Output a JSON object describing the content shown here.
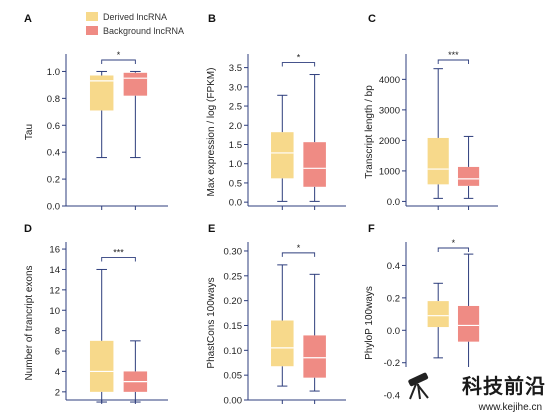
{
  "legend": {
    "items": [
      {
        "label": "Derived lncRNA",
        "color": "#f7d98b"
      },
      {
        "label": "Background lncRNA",
        "color": "#ef8b84"
      }
    ]
  },
  "colors": {
    "axis": "#2d3d7c",
    "derived": "#f7d98b",
    "background": "#ef8b84"
  },
  "chart_data": [
    {
      "panel": "A",
      "type": "box",
      "ylabel": "Tau",
      "ylim": [
        0,
        1.1
      ],
      "ticks": [
        0.0,
        0.2,
        0.4,
        0.6,
        0.8,
        1.0
      ],
      "tick_labels": [
        "0.0",
        "0.2",
        "0.4",
        "0.6",
        "0.8",
        "1.0"
      ],
      "significance": "*",
      "series": [
        {
          "name": "Derived lncRNA",
          "min": 0.36,
          "q1": 0.71,
          "median": 0.93,
          "q3": 0.97,
          "max": 1.0
        },
        {
          "name": "Background lncRNA",
          "min": 0.36,
          "q1": 0.82,
          "median": 0.95,
          "q3": 0.99,
          "max": 1.0
        }
      ]
    },
    {
      "panel": "B",
      "type": "box",
      "ylabel": "Max expression / log (FPKM)",
      "ylim": [
        -0.1,
        3.75
      ],
      "ticks": [
        0.0,
        0.5,
        1.0,
        1.5,
        2.0,
        2.5,
        3.0,
        3.5
      ],
      "tick_labels": [
        "0.0",
        "0.5",
        "1.0",
        "1.5",
        "2.0",
        "2.5",
        "3.0",
        "3.5"
      ],
      "significance": "*",
      "series": [
        {
          "name": "Derived lncRNA",
          "min": 0.02,
          "q1": 0.62,
          "median": 1.28,
          "q3": 1.82,
          "max": 2.78
        },
        {
          "name": "Background lncRNA",
          "min": 0.02,
          "q1": 0.4,
          "median": 0.88,
          "q3": 1.56,
          "max": 3.32
        }
      ]
    },
    {
      "panel": "C",
      "type": "box",
      "ylabel": "Transcript length / bp",
      "ylim": [
        -150,
        4700
      ],
      "ticks": [
        0,
        1000,
        2000,
        3000,
        4000
      ],
      "tick_labels": [
        "0.0",
        "1000",
        "2000",
        "3000",
        "4000"
      ],
      "significance": "***",
      "series": [
        {
          "name": "Derived lncRNA",
          "min": 100,
          "q1": 560,
          "median": 1060,
          "q3": 2080,
          "max": 4350
        },
        {
          "name": "Background lncRNA",
          "min": 100,
          "q1": 510,
          "median": 740,
          "q3": 1130,
          "max": 2130
        }
      ]
    },
    {
      "panel": "D",
      "type": "box",
      "ylabel": "Number of trancript exons",
      "ylim": [
        1.2,
        16.3
      ],
      "ticks": [
        2,
        4,
        6,
        8,
        10,
        12,
        14,
        16
      ],
      "tick_labels": [
        "2",
        "4",
        "6",
        "8",
        "10",
        "12",
        "14",
        "16"
      ],
      "significance": "***",
      "series": [
        {
          "name": "Derived lncRNA",
          "min": 1,
          "q1": 2,
          "median": 4,
          "q3": 7,
          "max": 14
        },
        {
          "name": "Background lncRNA",
          "min": 1,
          "q1": 2,
          "median": 3,
          "q3": 4,
          "max": 7
        }
      ]
    },
    {
      "panel": "E",
      "type": "box",
      "ylabel": "PhastCons 100ways",
      "ylim": [
        0,
        0.31
      ],
      "ticks": [
        0.0,
        0.05,
        0.1,
        0.15,
        0.2,
        0.25,
        0.3
      ],
      "tick_labels": [
        "0.00",
        "0.05",
        "0.10",
        "0.15",
        "0.20",
        "0.25",
        "0.30"
      ],
      "significance": "*",
      "series": [
        {
          "name": "Derived lncRNA",
          "min": 0.028,
          "q1": 0.068,
          "median": 0.105,
          "q3": 0.16,
          "max": 0.272
        },
        {
          "name": "Background lncRNA",
          "min": 0.018,
          "q1": 0.045,
          "median": 0.085,
          "q3": 0.13,
          "max": 0.253
        }
      ]
    },
    {
      "panel": "F",
      "type": "box",
      "ylabel": "PhyloP 100ways",
      "ylim": [
        -0.43,
        0.52
      ],
      "ticks": [
        -0.4,
        -0.2,
        0.0,
        0.2,
        0.4
      ],
      "tick_labels": [
        "-0.4",
        "-0.2",
        "0.0",
        "0.2",
        "0.4"
      ],
      "significance": "*",
      "series": [
        {
          "name": "Derived lncRNA",
          "min": -0.17,
          "q1": 0.02,
          "median": 0.09,
          "q3": 0.18,
          "max": 0.29
        },
        {
          "name": "Background lncRNA",
          "min": -0.43,
          "q1": -0.07,
          "median": 0.03,
          "q3": 0.15,
          "max": 0.47
        }
      ]
    }
  ],
  "watermark": {
    "title": "科技前沿",
    "url": "www.kejihe.cn"
  }
}
